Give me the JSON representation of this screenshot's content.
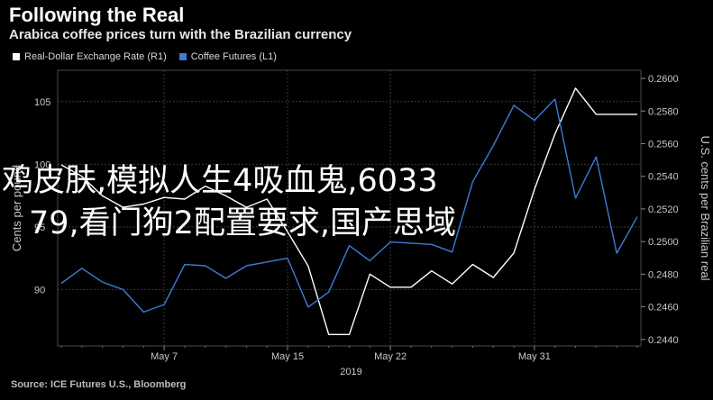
{
  "header": {
    "title": "Following the Real",
    "subtitle": "Arabica coffee prices turn with the Brazilian currency"
  },
  "legend": {
    "items": [
      {
        "label": "Real-Dollar Exchange Rate (R1)",
        "color": "#ffffff"
      },
      {
        "label": "Coffee Futures (L1)",
        "color": "#3d7bd9"
      }
    ]
  },
  "overlay": {
    "line1": "鸡皮肤,模拟人生4吸血鬼,6033",
    "line2": "79,看门狗2配置要求,国产思域"
  },
  "source": "Source: ICE Futures U.S., Bloomberg",
  "chart_data": {
    "type": "line",
    "title": "Following the Real",
    "subtitle": "Arabica coffee prices turn with the Brazilian currency",
    "xlabel": "2019",
    "x": [
      "Apr 30",
      "May 1",
      "May 2",
      "May 3",
      "May 6",
      "May 7",
      "May 8",
      "May 9",
      "May 10",
      "May 13",
      "May 14",
      "May 15",
      "May 16",
      "May 17",
      "May 20",
      "May 21",
      "May 22",
      "May 23",
      "May 24",
      "May 27",
      "May 28",
      "May 29",
      "May 30",
      "May 31",
      "Jun 3",
      "Jun 4",
      "Jun 5",
      "Jun 6",
      "Jun 7"
    ],
    "x_tick_labels": [
      "May 7",
      "May 15",
      "May 22",
      "May 31"
    ],
    "left_axis": {
      "label": "Cents per pound",
      "ylim": [
        85.5,
        107.5
      ],
      "ticks": [
        90,
        95,
        100,
        105
      ]
    },
    "right_axis": {
      "label": "U.S. cents per Brazilian real",
      "ylim": [
        0.2436,
        0.2605
      ],
      "ticks": [
        "0.2440",
        "0.2460",
        "0.2480",
        "0.2500",
        "0.2520",
        "0.2540",
        "0.2560",
        "0.2580",
        "0.2600"
      ]
    },
    "series": [
      {
        "name": "Real-Dollar Exchange Rate (R1)",
        "axis": "right",
        "color": "#ffffff",
        "values": [
          0.2547,
          0.254,
          0.2528,
          0.2521,
          0.2523,
          0.2527,
          0.2526,
          0.2534,
          0.2528,
          0.2521,
          0.2526,
          0.2506,
          0.2485,
          0.2443,
          0.2443,
          0.248,
          0.2472,
          0.2472,
          0.2482,
          0.2474,
          0.2486,
          0.2478,
          0.2493,
          0.2532,
          0.2566,
          0.2594,
          0.2578,
          0.2578,
          0.2578
        ]
      },
      {
        "name": "Coffee Futures (L1)",
        "axis": "left",
        "color": "#3d7bd9",
        "values": [
          90.5,
          91.7,
          90.6,
          90.0,
          88.2,
          88.8,
          92.0,
          91.9,
          90.9,
          91.9,
          92.2,
          92.5,
          88.6,
          89.8,
          93.5,
          92.3,
          93.8,
          93.7,
          93.6,
          93.0,
          98.6,
          101.5,
          104.7,
          103.5,
          105.2,
          97.3,
          100.6,
          92.9,
          95.8
        ]
      }
    ],
    "grid": true,
    "legend_position": "top-left"
  }
}
